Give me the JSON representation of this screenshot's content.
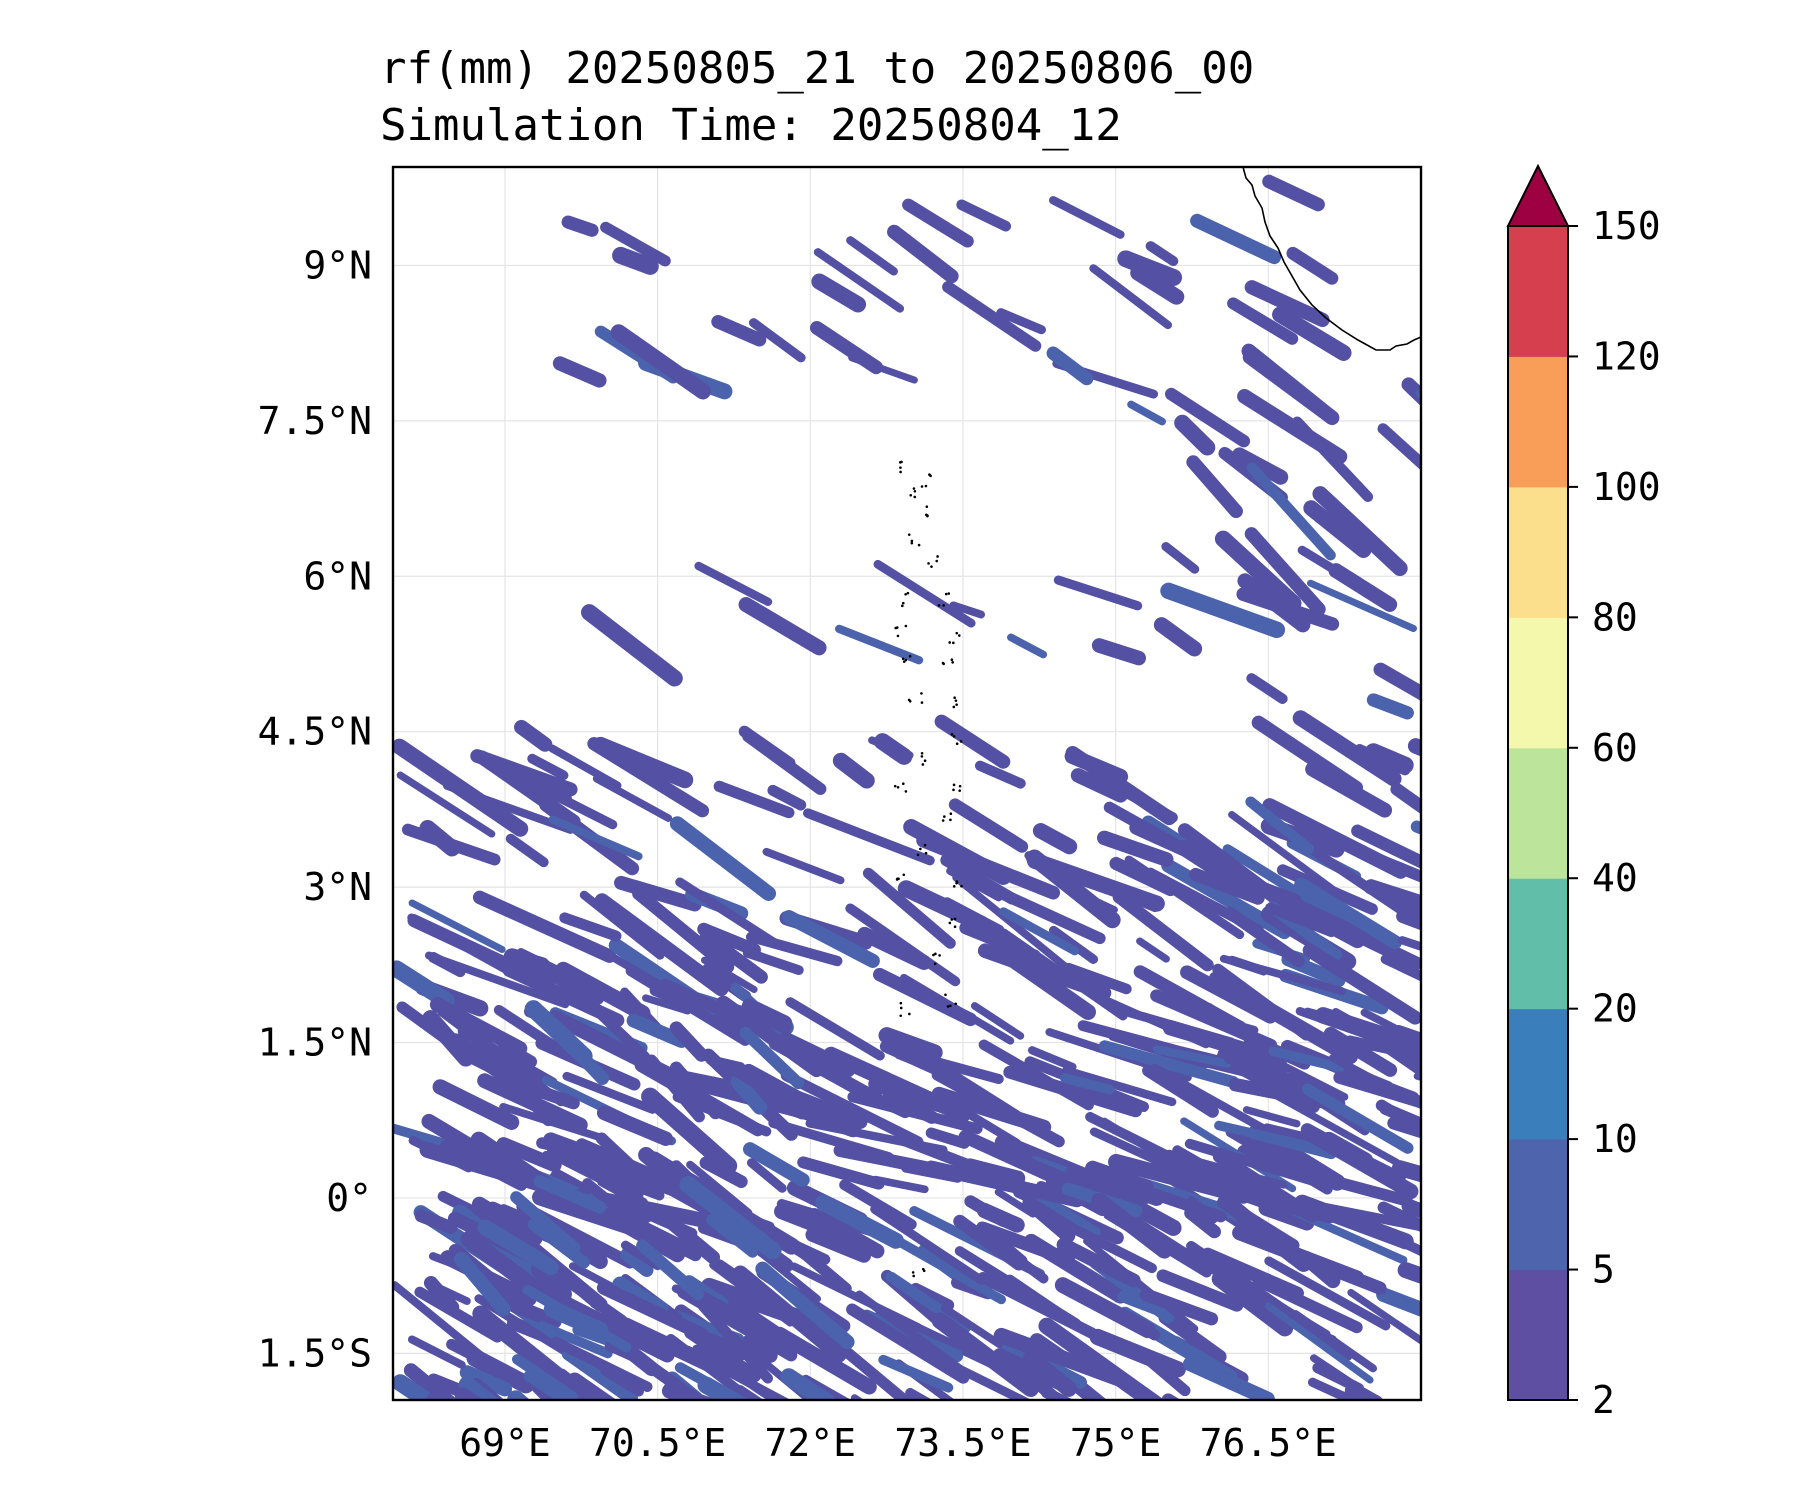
{
  "title": {
    "line1": "rf(mm) 20250805_21 to 20250806_00",
    "line2": "Simulation Time: 20250804_12"
  },
  "map": {
    "lon_range": [
      67.9,
      78.0
    ],
    "lat_range": [
      -1.95,
      9.95
    ],
    "lon_ticks": [
      {
        "value": 69,
        "label": "69°E"
      },
      {
        "value": 70.5,
        "label": "70.5°E"
      },
      {
        "value": 72,
        "label": "72°E"
      },
      {
        "value": 73.5,
        "label": "73.5°E"
      },
      {
        "value": 75,
        "label": "75°E"
      },
      {
        "value": 76.5,
        "label": "76.5°E"
      }
    ],
    "lat_ticks": [
      {
        "value": 9,
        "label": "9°N"
      },
      {
        "value": 7.5,
        "label": "7.5°N"
      },
      {
        "value": 6,
        "label": "6°N"
      },
      {
        "value": 4.5,
        "label": "4.5°N"
      },
      {
        "value": 3,
        "label": "3°N"
      },
      {
        "value": 1.5,
        "label": "1.5°N"
      },
      {
        "value": 0,
        "label": "0°"
      },
      {
        "value": -1.5,
        "label": "1.5°S"
      }
    ],
    "gridlines": true,
    "rain_color": "#5450a3",
    "rain_color_dark": "#4b62ad"
  },
  "colorbar": {
    "levels": [
      {
        "value": 2,
        "label": "2"
      },
      {
        "value": 5,
        "label": "5"
      },
      {
        "value": 10,
        "label": "10"
      },
      {
        "value": 20,
        "label": "20"
      },
      {
        "value": 40,
        "label": "40"
      },
      {
        "value": 60,
        "label": "60"
      },
      {
        "value": 80,
        "label": "80"
      },
      {
        "value": 100,
        "label": "100"
      },
      {
        "value": 120,
        "label": "120"
      },
      {
        "value": 150,
        "label": "150"
      }
    ],
    "colors": [
      "#5e4fa2",
      "#4e65ad",
      "#3a7fbb",
      "#61bea8",
      "#bde49b",
      "#f3f8ac",
      "#fbdf8c",
      "#f89e59",
      "#d6404e"
    ],
    "extend_color": "#9e0142",
    "extend": "max"
  }
}
